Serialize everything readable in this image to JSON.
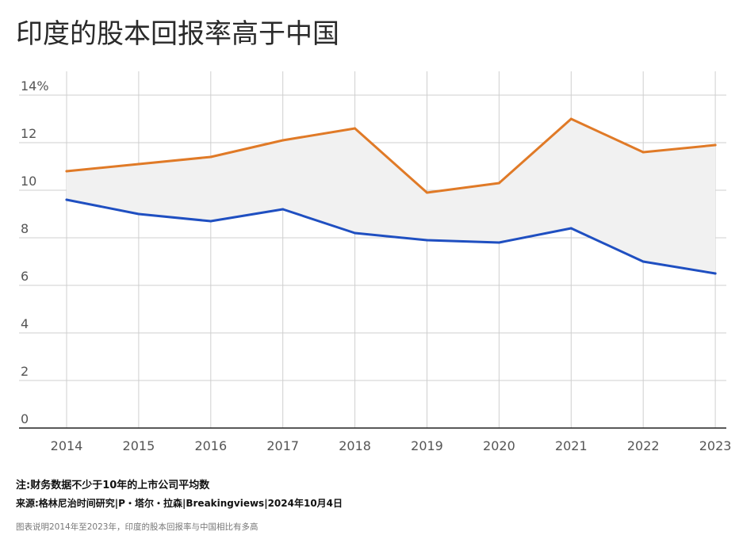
{
  "title": "印度的股本回报率高于中国",
  "footer": {
    "note": "注:财务数据不少于10年的上市公司平均数",
    "source": "来源:格林尼治时间研究|P・塔尔・拉森|Breakingviews|2024年10月4日",
    "caption": "图表说明2014年至2023年，印度的股本回报率与中国相比有多高"
  },
  "chart_data": {
    "type": "line",
    "title": "印度的股本回报率高于中国",
    "xlabel": "",
    "ylabel": "",
    "categories": [
      "2014",
      "2015",
      "2016",
      "2017",
      "2018",
      "2019",
      "2020",
      "2021",
      "2022",
      "2023"
    ],
    "series": [
      {
        "values": [
          10.8,
          11.1,
          11.4,
          12.1,
          12.6,
          9.9,
          10.3,
          13.0,
          11.6,
          11.9
        ],
        "color": "#e07a27"
      },
      {
        "values": [
          9.6,
          9.0,
          8.7,
          9.2,
          8.2,
          7.9,
          7.8,
          8.4,
          7.0,
          6.5
        ],
        "color": "#1f4fc1"
      }
    ],
    "ylim": [
      0,
      14
    ],
    "yticks": [
      0,
      2,
      4,
      6,
      8,
      10,
      12,
      14
    ],
    "ytick_labels": [
      "0",
      "2",
      "4",
      "6",
      "8",
      "10",
      "12",
      "14%"
    ],
    "fill_between_color": "#f1f1f1",
    "grid": true
  }
}
